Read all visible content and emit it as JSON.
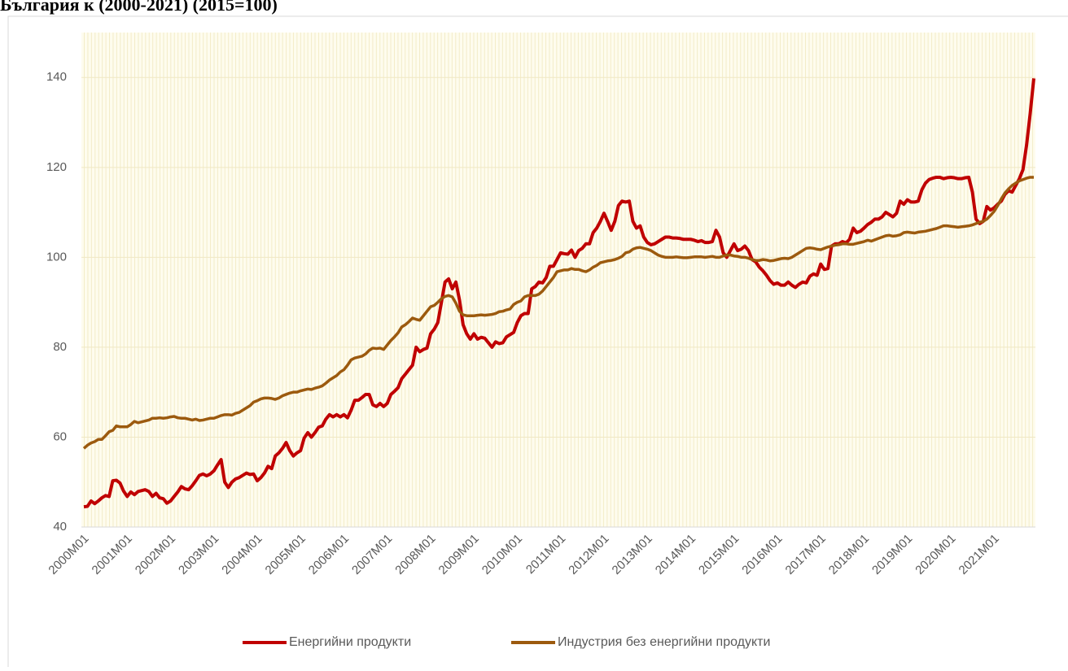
{
  "chart_data": {
    "type": "line",
    "title": "България к (2000-2021) (2015=100)",
    "categories": [
      "2000M01",
      null,
      null,
      null,
      null,
      null,
      null,
      null,
      null,
      null,
      null,
      null,
      "2001M01",
      null,
      null,
      null,
      null,
      null,
      null,
      null,
      null,
      null,
      null,
      null,
      "2002M01",
      null,
      null,
      null,
      null,
      null,
      null,
      null,
      null,
      null,
      null,
      null,
      "2003M01",
      null,
      null,
      null,
      null,
      null,
      null,
      null,
      null,
      null,
      null,
      null,
      "2004M01",
      null,
      null,
      null,
      null,
      null,
      null,
      null,
      null,
      null,
      null,
      null,
      "2005M01",
      null,
      null,
      null,
      null,
      null,
      null,
      null,
      null,
      null,
      null,
      null,
      "2006M01",
      null,
      null,
      null,
      null,
      null,
      null,
      null,
      null,
      null,
      null,
      null,
      "2007M01",
      null,
      null,
      null,
      null,
      null,
      null,
      null,
      null,
      null,
      null,
      null,
      "2008M01",
      null,
      null,
      null,
      null,
      null,
      null,
      null,
      null,
      null,
      null,
      null,
      "2009M01",
      null,
      null,
      null,
      null,
      null,
      null,
      null,
      null,
      null,
      null,
      null,
      "2010M01",
      null,
      null,
      null,
      null,
      null,
      null,
      null,
      null,
      null,
      null,
      null,
      "2011M01",
      null,
      null,
      null,
      null,
      null,
      null,
      null,
      null,
      null,
      null,
      null,
      "2012M01",
      null,
      null,
      null,
      null,
      null,
      null,
      null,
      null,
      null,
      null,
      null,
      "2013M01",
      null,
      null,
      null,
      null,
      null,
      null,
      null,
      null,
      null,
      null,
      null,
      "2014M01",
      null,
      null,
      null,
      null,
      null,
      null,
      null,
      null,
      null,
      null,
      null,
      "2015M01",
      null,
      null,
      null,
      null,
      null,
      null,
      null,
      null,
      null,
      null,
      null,
      "2016M01",
      null,
      null,
      null,
      null,
      null,
      null,
      null,
      null,
      null,
      null,
      null,
      "2017M01",
      null,
      null,
      null,
      null,
      null,
      null,
      null,
      null,
      null,
      null,
      null,
      "2018M01",
      null,
      null,
      null,
      null,
      null,
      null,
      null,
      null,
      null,
      null,
      null,
      "2019M01",
      null,
      null,
      null,
      null,
      null,
      null,
      null,
      null,
      null,
      null,
      null,
      "2020M01",
      null,
      null,
      null,
      null,
      null,
      null,
      null,
      null,
      null,
      null,
      null,
      "2021M01",
      null,
      null,
      null,
      null,
      null,
      null,
      null,
      null,
      null,
      null,
      null
    ],
    "series": [
      {
        "name": "Енергийни продукти",
        "color": "#c00000",
        "values": [
          44.5,
          44.6,
          45.8,
          45.2,
          45.8,
          46.5,
          47,
          46.8,
          50.3,
          50.4,
          49.8,
          48,
          46.8,
          47.8,
          47.2,
          47.9,
          48.1,
          48.3,
          47.9,
          46.8,
          47.5,
          46.5,
          46.3,
          45.3,
          45.8,
          46.8,
          47.8,
          49,
          48.5,
          48.3,
          49.2,
          50.3,
          51.5,
          51.8,
          51.4,
          51.8,
          52.5,
          53.8,
          55,
          50,
          48.8,
          50,
          50.7,
          51,
          51.5,
          52,
          51.7,
          51.8,
          50.3,
          51,
          52,
          53.5,
          53,
          55.8,
          56.5,
          57.5,
          58.8,
          57,
          55.8,
          56.5,
          57,
          59.8,
          61,
          60,
          61,
          62.2,
          62.5,
          64,
          65,
          64.5,
          65,
          64.5,
          65,
          64.3,
          66,
          68.2,
          68.2,
          68.8,
          69.5,
          69.5,
          67.2,
          66.8,
          67.5,
          66.8,
          67.5,
          69.5,
          70.2,
          71,
          73,
          74,
          75,
          76,
          80,
          79,
          79.5,
          79.8,
          83,
          84,
          85.5,
          90,
          94.5,
          95.2,
          93,
          94.5,
          90.5,
          85,
          83,
          81.8,
          83,
          81.8,
          82.2,
          82,
          81,
          80,
          81.2,
          80.8,
          81,
          82.3,
          82.8,
          83.3,
          85.5,
          87,
          87.5,
          87.5,
          93,
          93.5,
          94.5,
          94.3,
          95.5,
          98,
          98,
          99.5,
          101,
          100.8,
          100.7,
          101.6,
          100,
          101.5,
          102,
          103,
          103,
          105.5,
          106.5,
          108,
          109.8,
          108,
          106,
          108,
          111.5,
          112.5,
          112.3,
          112.5,
          108,
          106.5,
          107,
          104.5,
          103.3,
          102.8,
          103,
          103.5,
          104,
          104.5,
          104.5,
          104.3,
          104.3,
          104.2,
          104,
          104,
          104,
          103.8,
          103.5,
          103.7,
          103.3,
          103.3,
          103.5,
          106,
          104.5,
          101,
          100,
          101.5,
          103,
          101.5,
          101.8,
          102.5,
          101.5,
          99.5,
          99,
          97.8,
          97,
          96,
          94.8,
          94,
          94.3,
          93.8,
          93.8,
          94.5,
          93.8,
          93.3,
          94,
          94.5,
          94.3,
          95.8,
          96.3,
          96,
          98.5,
          97.3,
          97.5,
          102.5,
          103,
          103,
          103.5,
          103.2,
          104,
          106.5,
          105.5,
          105.8,
          106.5,
          107.3,
          107.8,
          108.5,
          108.5,
          109,
          110,
          109.5,
          109,
          109.8,
          112.5,
          111.8,
          112.8,
          112.3,
          112.3,
          112.5,
          115,
          116.5,
          117.3,
          117.6,
          117.8,
          117.8,
          117.5,
          117.7,
          117.8,
          117.7,
          117.5,
          117.5,
          117.7,
          117.8,
          114.5,
          108.5,
          107.5,
          108,
          111.3,
          110.5,
          111,
          111.8,
          112.5,
          114,
          114.8,
          114.5,
          116,
          117.5,
          119.5,
          125,
          132,
          139.8
        ]
      },
      {
        "name": "Индустрия без енергийни продукти",
        "color": "#9c5a0e",
        "values": [
          57.5,
          58.2,
          58.7,
          59,
          59.5,
          59.5,
          60.3,
          61.2,
          61.5,
          62.5,
          62.3,
          62.3,
          62.3,
          62.8,
          63.5,
          63.2,
          63.4,
          63.6,
          63.8,
          64.2,
          64.2,
          64.3,
          64.2,
          64.3,
          64.5,
          64.6,
          64.3,
          64.2,
          64.2,
          64,
          63.8,
          64,
          63.7,
          63.8,
          64,
          64.2,
          64.2,
          64.5,
          64.8,
          65,
          65,
          64.9,
          65.3,
          65.5,
          66,
          66.5,
          67,
          67.8,
          68.1,
          68.5,
          68.7,
          68.7,
          68.6,
          68.4,
          68.7,
          69.2,
          69.5,
          69.8,
          70,
          70,
          70.3,
          70.5,
          70.7,
          70.6,
          70.9,
          71.1,
          71.4,
          72,
          72.7,
          73.2,
          73.7,
          74.5,
          75,
          76,
          77.2,
          77.6,
          77.8,
          78,
          78.5,
          79.3,
          79.8,
          79.7,
          79.8,
          79.5,
          80.5,
          81.5,
          82.3,
          83.2,
          84.5,
          85,
          85.7,
          86.5,
          86.2,
          86,
          87,
          88,
          89,
          89.3,
          90,
          90.8,
          91.3,
          91.5,
          91.2,
          89.8,
          88,
          87.2,
          87,
          87,
          87,
          87.1,
          87.2,
          87.1,
          87.2,
          87.3,
          87.5,
          87.9,
          88,
          88.3,
          88.5,
          89.5,
          90,
          90.3,
          91.2,
          91.5,
          91.5,
          91.5,
          91.8,
          92.5,
          93.5,
          94.5,
          95.5,
          96.8,
          97,
          97.2,
          97.2,
          97.5,
          97.3,
          97.3,
          97,
          96.8,
          97.2,
          97.8,
          98.2,
          98.8,
          99,
          99.2,
          99.3,
          99.5,
          99.8,
          100.2,
          101,
          101.2,
          101.8,
          102.1,
          102.2,
          102,
          101.8,
          101.5,
          101,
          100.5,
          100.2,
          100,
          100,
          100,
          100.1,
          100,
          99.9,
          99.9,
          100,
          100.1,
          100.1,
          100.1,
          100,
          100.1,
          100.2,
          100,
          100,
          100.3,
          100.5,
          100.5,
          100.3,
          100.2,
          100,
          100,
          99.8,
          99.5,
          99.3,
          99.3,
          99.5,
          99.4,
          99.2,
          99.3,
          99.5,
          99.7,
          99.8,
          99.7,
          100,
          100.5,
          101,
          101.5,
          102,
          102.1,
          102,
          101.8,
          101.7,
          102,
          102.3,
          102.5,
          102.7,
          102.8,
          103,
          103,
          102.9,
          102.9,
          103.1,
          103.3,
          103.5,
          103.8,
          103.6,
          103.9,
          104.2,
          104.5,
          104.8,
          104.9,
          104.7,
          104.8,
          105,
          105.5,
          105.6,
          105.5,
          105.4,
          105.6,
          105.7,
          105.8,
          106,
          106.2,
          106.4,
          106.7,
          107,
          107,
          106.9,
          106.8,
          106.7,
          106.8,
          106.9,
          107,
          107.2,
          107.5,
          107.8,
          108,
          108.5,
          109.3,
          110.2,
          111.5,
          113,
          114.3,
          115.2,
          116,
          116.5,
          117,
          117.3,
          117.6,
          117.8,
          117.8
        ]
      }
    ],
    "ylim": [
      40,
      150
    ],
    "yticks": [
      40,
      60,
      80,
      100,
      120,
      140
    ],
    "grid": true,
    "legend": "bottom"
  }
}
